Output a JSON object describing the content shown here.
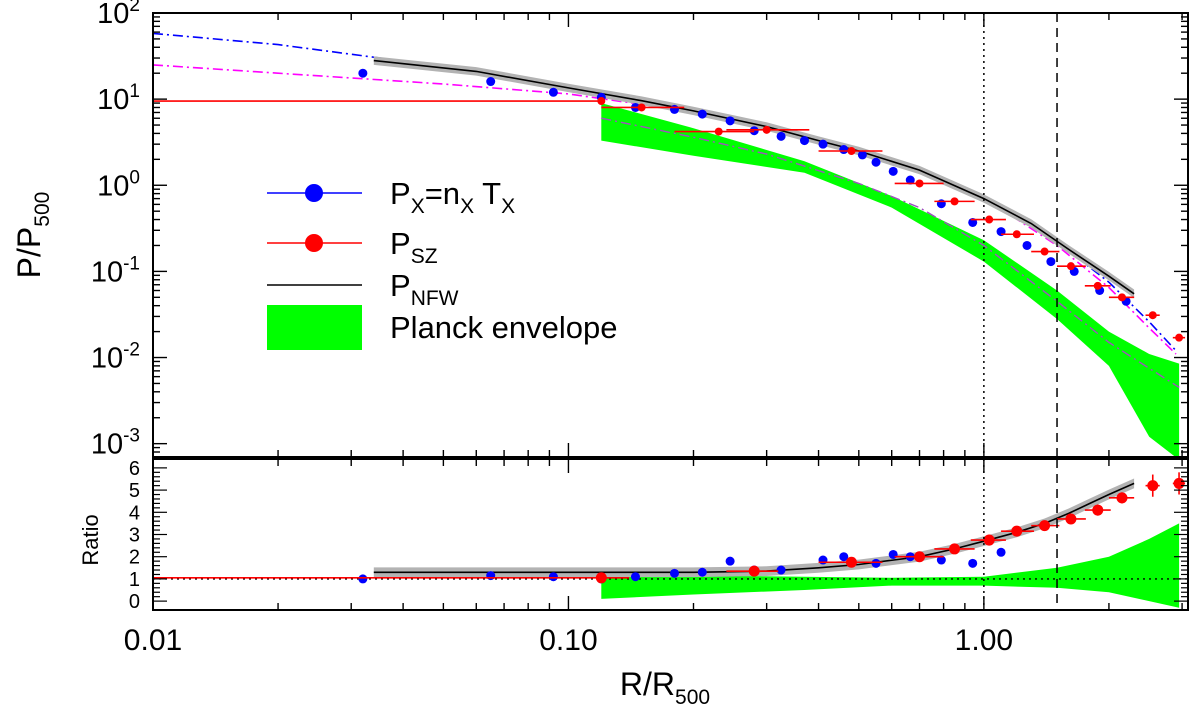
{
  "chart_data": {
    "type": "scatter",
    "x_scale": "log",
    "xlim": [
      0.01,
      3.1
    ],
    "x_ticks": [
      {
        "value": 0.01,
        "label": "0.01"
      },
      {
        "value": 0.1,
        "label": "0.10"
      },
      {
        "value": 1.0,
        "label": "1.00"
      }
    ],
    "xlabel": {
      "main": "R/R",
      "sub": "500"
    },
    "vertical_lines": [
      {
        "x": 1.0,
        "style": "dotted"
      },
      {
        "x": 1.5,
        "style": "dashed"
      }
    ],
    "top_panel": {
      "y_scale": "log",
      "ylim": [
        0.0007,
        100
      ],
      "y_ticks": [
        {
          "value": 100,
          "base": "10",
          "exp": "2"
        },
        {
          "value": 10,
          "base": "10",
          "exp": "1"
        },
        {
          "value": 1,
          "base": "10",
          "exp": "0"
        },
        {
          "value": 0.1,
          "base": "10",
          "exp": "-1"
        },
        {
          "value": 0.01,
          "base": "10",
          "exp": "-2"
        },
        {
          "value": 0.001,
          "base": "10",
          "exp": "-3"
        }
      ],
      "ylabel": {
        "main": "P/P",
        "sub": "500"
      },
      "px_points": [
        {
          "x": 0.032,
          "y": 20
        },
        {
          "x": 0.065,
          "y": 16
        },
        {
          "x": 0.092,
          "y": 12
        },
        {
          "x": 0.12,
          "y": 10.5
        },
        {
          "x": 0.145,
          "y": 8
        },
        {
          "x": 0.18,
          "y": 7.6
        },
        {
          "x": 0.21,
          "y": 6.7
        },
        {
          "x": 0.245,
          "y": 5.6
        },
        {
          "x": 0.28,
          "y": 4.3
        },
        {
          "x": 0.325,
          "y": 3.7
        },
        {
          "x": 0.37,
          "y": 3.3
        },
        {
          "x": 0.41,
          "y": 3.0
        },
        {
          "x": 0.46,
          "y": 2.6
        },
        {
          "x": 0.51,
          "y": 2.25
        },
        {
          "x": 0.55,
          "y": 1.85
        },
        {
          "x": 0.605,
          "y": 1.45
        },
        {
          "x": 0.665,
          "y": 1.15
        },
        {
          "x": 0.79,
          "y": 0.61
        },
        {
          "x": 0.94,
          "y": 0.37
        },
        {
          "x": 1.1,
          "y": 0.29
        },
        {
          "x": 1.27,
          "y": 0.2
        },
        {
          "x": 1.45,
          "y": 0.13
        },
        {
          "x": 1.65,
          "y": 0.1
        },
        {
          "x": 1.9,
          "y": 0.06
        },
        {
          "x": 2.2,
          "y": 0.045
        }
      ],
      "psz_points": [
        {
          "x": 0.12,
          "y": 9.5,
          "xlo": 0.01,
          "xhi": 0.12
        },
        {
          "x": 0.15,
          "y": 8.0,
          "xlo": 0.12,
          "xhi": 0.19
        },
        {
          "x": 0.23,
          "y": 4.2,
          "xlo": 0.18,
          "xhi": 0.28
        },
        {
          "x": 0.3,
          "y": 4.4,
          "xlo": 0.24,
          "xhi": 0.38
        },
        {
          "x": 0.48,
          "y": 2.5,
          "xlo": 0.4,
          "xhi": 0.57
        },
        {
          "x": 0.7,
          "y": 1.05,
          "xlo": 0.61,
          "xhi": 0.8
        },
        {
          "x": 0.85,
          "y": 0.65,
          "xlo": 0.76,
          "xhi": 0.95
        },
        {
          "x": 1.03,
          "y": 0.4,
          "xlo": 0.93,
          "xhi": 1.13
        },
        {
          "x": 1.2,
          "y": 0.27,
          "xlo": 1.1,
          "xhi": 1.32
        },
        {
          "x": 1.4,
          "y": 0.17,
          "xlo": 1.3,
          "xhi": 1.52
        },
        {
          "x": 1.62,
          "y": 0.115,
          "xlo": 1.5,
          "xhi": 1.76
        },
        {
          "x": 1.88,
          "y": 0.068,
          "xlo": 1.75,
          "xhi": 2.02
        },
        {
          "x": 2.15,
          "y": 0.05,
          "xlo": 2.0,
          "xhi": 2.3
        },
        {
          "x": 2.55,
          "y": 0.031,
          "xlo": 2.45,
          "xhi": 2.65
        },
        {
          "x": 2.95,
          "y": 0.017,
          "xlo": 2.85,
          "xhi": 3.05
        }
      ],
      "pnfw_curve": {
        "x": [
          0.034,
          0.06,
          0.1,
          0.15,
          0.2,
          0.3,
          0.4,
          0.5,
          0.7,
          1.0,
          1.3,
          1.6,
          2.0,
          2.3
        ],
        "y": [
          28,
          21,
          13.5,
          9.6,
          7.3,
          4.8,
          3.3,
          2.5,
          1.5,
          0.7,
          0.36,
          0.18,
          0.088,
          0.055
        ]
      },
      "model_blue": {
        "x": [
          0.01,
          0.02,
          0.05,
          0.1,
          0.2,
          0.3,
          0.5,
          0.7,
          1.0,
          1.5,
          2.0,
          2.5,
          2.9
        ],
        "y": [
          58,
          43,
          24,
          14,
          7.2,
          4.8,
          2.6,
          1.6,
          0.75,
          0.22,
          0.075,
          0.026,
          0.012
        ]
      },
      "model_magenta": {
        "x": [
          0.01,
          0.02,
          0.05,
          0.1,
          0.2,
          0.3,
          0.5,
          0.7,
          1.0,
          1.5,
          2.0,
          2.5,
          2.9
        ],
        "y": [
          25,
          20,
          15,
          11.5,
          7.1,
          4.7,
          2.5,
          1.5,
          0.72,
          0.2,
          0.065,
          0.022,
          0.011
        ]
      },
      "model_purple": {
        "x": [
          0.12,
          0.2,
          0.3,
          0.5,
          0.7,
          1.0,
          1.5,
          2.0,
          2.5,
          2.95
        ],
        "y": [
          6.0,
          3.6,
          2.3,
          1.05,
          0.55,
          0.2,
          0.045,
          0.015,
          0.0075,
          0.0045
        ]
      },
      "planck_envelope": {
        "x": [
          0.12,
          0.2,
          0.37,
          0.6,
          1.0,
          1.5,
          2.0,
          2.5,
          2.95
        ],
        "upper": [
          9.0,
          4.6,
          1.9,
          0.75,
          0.23,
          0.06,
          0.02,
          0.011,
          0.0085
        ],
        "lower": [
          3.3,
          2.2,
          1.4,
          0.55,
          0.13,
          0.028,
          0.008,
          0.0012,
          0.00065
        ]
      },
      "legend": [
        {
          "type": "dot",
          "color": "#0000ff",
          "main": "P",
          "sub": "X",
          "rest": "=n",
          "sub2": "X",
          "tail": " T",
          "sub3": "X"
        },
        {
          "type": "dot",
          "color": "#ff0000",
          "main": "P",
          "sub": "SZ"
        },
        {
          "type": "line",
          "color": "#000000",
          "main": "P",
          "sub": "NFW"
        },
        {
          "type": "patch",
          "color": "#00ff00",
          "main": "Planck envelope"
        }
      ]
    },
    "bottom_panel": {
      "y_scale": "linear",
      "ylim": [
        -0.4,
        6.4
      ],
      "y_ticks": [
        "0",
        "1",
        "2",
        "3",
        "4",
        "5",
        "6"
      ],
      "ylabel": "Ratio",
      "reference_line": 1,
      "px_points": [
        {
          "x": 0.032,
          "y": 1.0
        },
        {
          "x": 0.065,
          "y": 1.15
        },
        {
          "x": 0.092,
          "y": 1.1
        },
        {
          "x": 0.12,
          "y": 1.0
        },
        {
          "x": 0.145,
          "y": 1.1
        },
        {
          "x": 0.18,
          "y": 1.25
        },
        {
          "x": 0.21,
          "y": 1.3
        },
        {
          "x": 0.245,
          "y": 1.8
        },
        {
          "x": 0.28,
          "y": 1.4
        },
        {
          "x": 0.325,
          "y": 1.4
        },
        {
          "x": 0.41,
          "y": 1.85
        },
        {
          "x": 0.46,
          "y": 2.0
        },
        {
          "x": 0.55,
          "y": 1.7
        },
        {
          "x": 0.605,
          "y": 2.1
        },
        {
          "x": 0.665,
          "y": 2.0
        },
        {
          "x": 0.79,
          "y": 1.85
        },
        {
          "x": 0.94,
          "y": 1.7
        },
        {
          "x": 1.1,
          "y": 2.2
        }
      ],
      "psz_points": [
        {
          "x": 0.12,
          "y": 1.05,
          "xlo": 0.01,
          "xhi": 0.14,
          "ylo": 0.9,
          "yhi": 1.2
        },
        {
          "x": 0.28,
          "y": 1.35,
          "xlo": 0.24,
          "xhi": 0.32,
          "ylo": 1.2,
          "yhi": 1.5
        },
        {
          "x": 0.48,
          "y": 1.75,
          "xlo": 0.4,
          "xhi": 0.57,
          "ylo": 1.6,
          "yhi": 1.9
        },
        {
          "x": 0.7,
          "y": 2.0,
          "xlo": 0.61,
          "xhi": 0.8,
          "ylo": 1.85,
          "yhi": 2.2
        },
        {
          "x": 0.85,
          "y": 2.35,
          "xlo": 0.76,
          "xhi": 0.95,
          "ylo": 2.2,
          "yhi": 2.5
        },
        {
          "x": 1.03,
          "y": 2.75,
          "xlo": 0.93,
          "xhi": 1.13,
          "ylo": 2.5,
          "yhi": 3.0
        },
        {
          "x": 1.2,
          "y": 3.15,
          "xlo": 1.1,
          "xhi": 1.32,
          "ylo": 2.95,
          "yhi": 3.35
        },
        {
          "x": 1.4,
          "y": 3.4,
          "xlo": 1.3,
          "xhi": 1.52,
          "ylo": 3.2,
          "yhi": 3.6
        },
        {
          "x": 1.62,
          "y": 3.7,
          "xlo": 1.5,
          "xhi": 1.76,
          "ylo": 3.5,
          "yhi": 3.9
        },
        {
          "x": 1.88,
          "y": 4.1,
          "xlo": 1.75,
          "xhi": 2.02,
          "ylo": 3.85,
          "yhi": 4.35
        },
        {
          "x": 2.15,
          "y": 4.65,
          "xlo": 2.0,
          "xhi": 2.3,
          "ylo": 4.4,
          "yhi": 4.9
        },
        {
          "x": 2.55,
          "y": 5.2,
          "xlo": 2.45,
          "xhi": 2.65,
          "ylo": 4.7,
          "yhi": 5.7
        },
        {
          "x": 2.95,
          "y": 5.3,
          "xlo": 2.85,
          "xhi": 3.05,
          "ylo": 4.8,
          "yhi": 5.8
        }
      ],
      "pnfw_curve": {
        "x": [
          0.034,
          0.1,
          0.2,
          0.3,
          0.4,
          0.5,
          0.7,
          0.85,
          1.0,
          1.2,
          1.4,
          1.6,
          1.8,
          2.0,
          2.3
        ],
        "y": [
          1.3,
          1.3,
          1.3,
          1.35,
          1.5,
          1.65,
          2.0,
          2.35,
          2.7,
          3.1,
          3.5,
          3.95,
          4.4,
          4.8,
          5.3
        ]
      },
      "planck_envelope": {
        "x": [
          0.12,
          0.2,
          0.37,
          0.6,
          1.0,
          1.5,
          2.0,
          2.5,
          2.95
        ],
        "upper": [
          1.25,
          1.15,
          1.1,
          1.05,
          1.1,
          1.5,
          2.0,
          2.8,
          3.5
        ],
        "lower": [
          0.1,
          0.3,
          0.5,
          0.7,
          0.7,
          0.6,
          0.4,
          0.0,
          -0.3
        ]
      }
    },
    "colors": {
      "px": "#0000ff",
      "psz": "#ff0000",
      "pnfw": "#000000",
      "pnfw_band": "#b3b3b3",
      "planck": "#00ff00",
      "model_blue": "#0000ff",
      "model_magenta": "#ff00ff",
      "model_purple": "#a050c0"
    }
  }
}
